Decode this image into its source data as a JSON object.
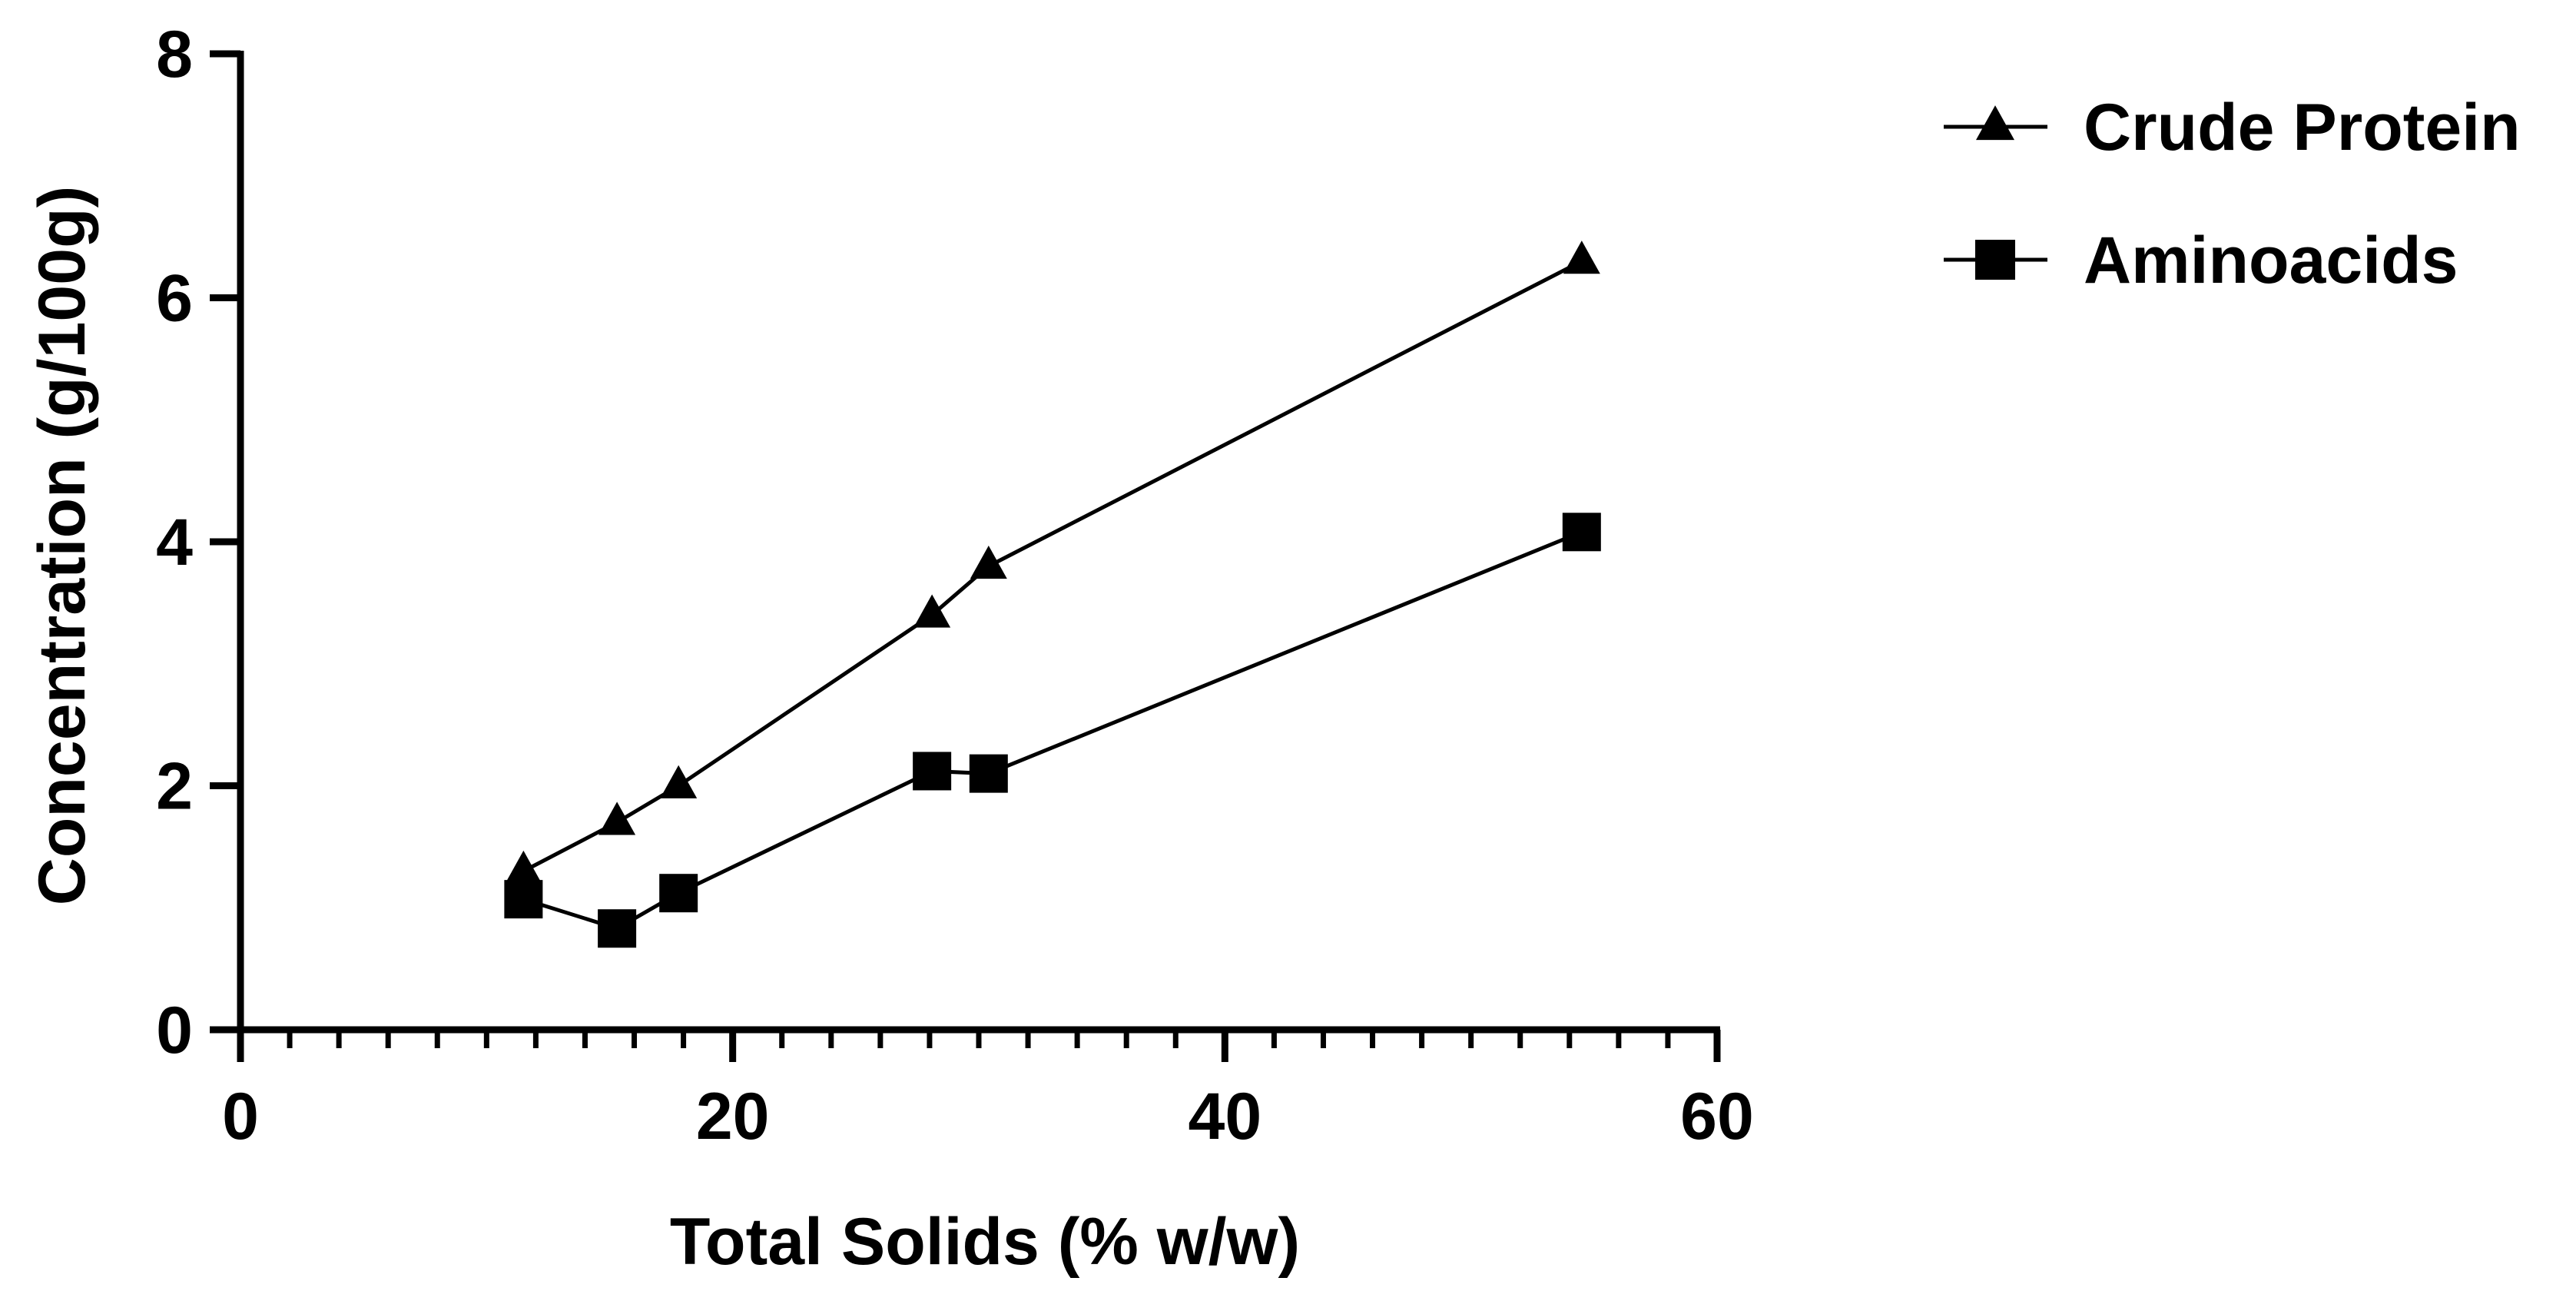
{
  "chart_data": {
    "type": "line",
    "title": "",
    "xlabel": "Total Solids (% w/w)",
    "ylabel": "Concentration (g/100g)",
    "xlim": [
      0,
      60
    ],
    "ylim": [
      0,
      8
    ],
    "x_ticks": [
      "0",
      "20",
      "40",
      "60"
    ],
    "y_ticks": [
      "0",
      "2",
      "4",
      "6",
      "8"
    ],
    "grid": false,
    "legend_position": "top-right",
    "series": [
      {
        "name": "Crude Protein",
        "marker": "triangle-icon",
        "color": "#000000",
        "x": [
          11.5,
          15.3,
          17.8,
          28.1,
          30.4,
          54.5
        ],
        "y": [
          1.3,
          1.7,
          2.0,
          3.4,
          3.8,
          6.3
        ]
      },
      {
        "name": "Aminoacids",
        "marker": "square-icon",
        "color": "#000000",
        "x": [
          11.5,
          15.3,
          17.8,
          28.1,
          30.4,
          54.5
        ],
        "y": [
          1.07,
          0.83,
          1.12,
          2.12,
          2.1,
          4.08
        ]
      }
    ]
  }
}
